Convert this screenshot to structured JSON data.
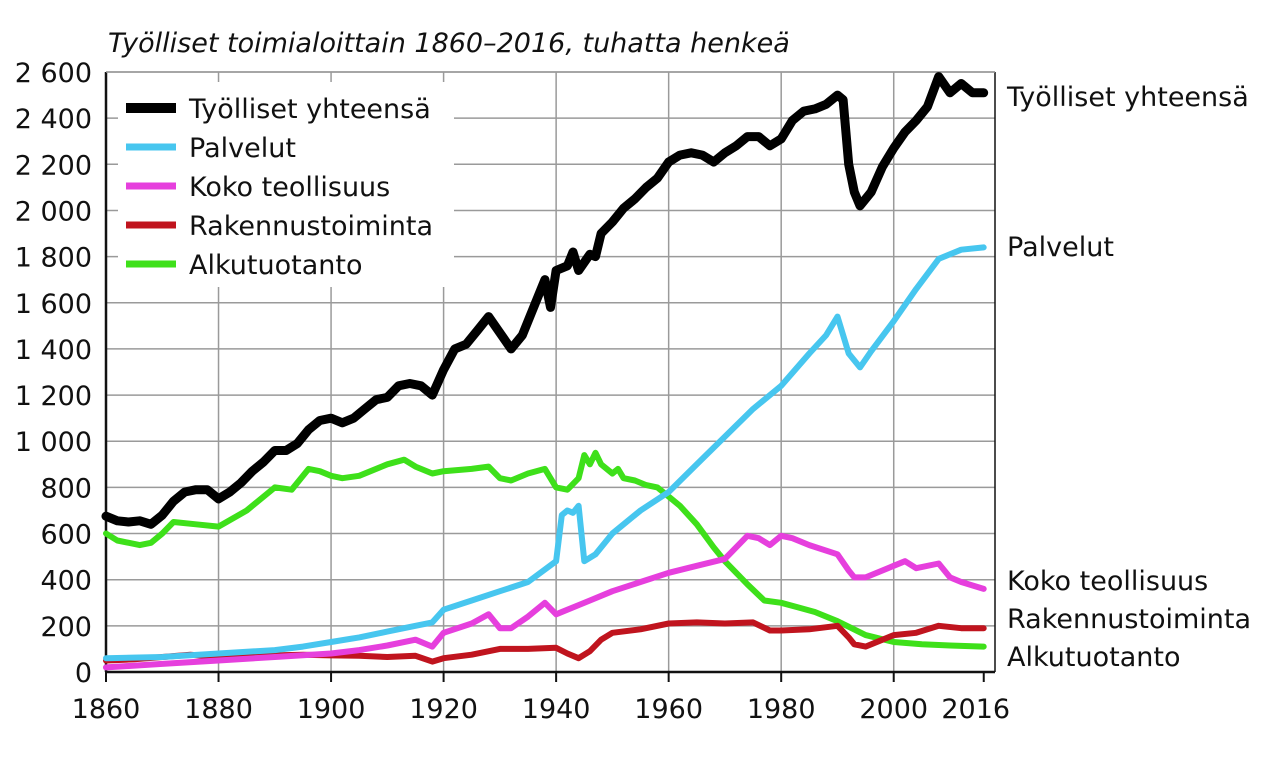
{
  "chart_data": {
    "type": "line",
    "title": "Työlliset toimialoittain 1860–2016, tuhatta henkeä",
    "xlabel": "",
    "ylabel": "",
    "xlim": [
      1860,
      2018
    ],
    "ylim": [
      0,
      2600
    ],
    "x_ticks": [
      1860,
      1880,
      1900,
      1920,
      1940,
      1960,
      1980,
      2000,
      2016
    ],
    "y_ticks": [
      {
        "value": 0,
        "label": "0"
      },
      {
        "value": 200,
        "label": "200"
      },
      {
        "value": 400,
        "label": "400"
      },
      {
        "value": 600,
        "label": "600"
      },
      {
        "value": 800,
        "label": "800"
      },
      {
        "value": 1000,
        "label": "1 000"
      },
      {
        "value": 1200,
        "label": "1 200"
      },
      {
        "value": 1400,
        "label": "1 400"
      },
      {
        "value": 1600,
        "label": "1 600"
      },
      {
        "value": 1800,
        "label": "1 800"
      },
      {
        "value": 2000,
        "label": "2 000"
      },
      {
        "value": 2200,
        "label": "2 200"
      },
      {
        "value": 2400,
        "label": "2 400"
      },
      {
        "value": 2600,
        "label": "2 600"
      }
    ],
    "grid": true,
    "legend_position": "top-left",
    "series": [
      {
        "name": "Työlliset yhteensä",
        "end_label": "Työlliset yhteensä",
        "color": "#000000",
        "width": 9,
        "points": [
          [
            1860,
            675
          ],
          [
            1862,
            655
          ],
          [
            1864,
            650
          ],
          [
            1866,
            655
          ],
          [
            1868,
            640
          ],
          [
            1870,
            680
          ],
          [
            1872,
            740
          ],
          [
            1874,
            780
          ],
          [
            1876,
            790
          ],
          [
            1878,
            790
          ],
          [
            1880,
            750
          ],
          [
            1882,
            780
          ],
          [
            1884,
            820
          ],
          [
            1886,
            870
          ],
          [
            1888,
            910
          ],
          [
            1890,
            960
          ],
          [
            1892,
            960
          ],
          [
            1894,
            990
          ],
          [
            1896,
            1050
          ],
          [
            1898,
            1090
          ],
          [
            1900,
            1100
          ],
          [
            1902,
            1080
          ],
          [
            1904,
            1100
          ],
          [
            1906,
            1140
          ],
          [
            1908,
            1180
          ],
          [
            1910,
            1190
          ],
          [
            1912,
            1240
          ],
          [
            1914,
            1250
          ],
          [
            1916,
            1240
          ],
          [
            1918,
            1200
          ],
          [
            1920,
            1310
          ],
          [
            1922,
            1400
          ],
          [
            1924,
            1420
          ],
          [
            1926,
            1480
          ],
          [
            1928,
            1540
          ],
          [
            1930,
            1470
          ],
          [
            1932,
            1400
          ],
          [
            1934,
            1460
          ],
          [
            1936,
            1580
          ],
          [
            1938,
            1700
          ],
          [
            1939,
            1580
          ],
          [
            1940,
            1740
          ],
          [
            1942,
            1760
          ],
          [
            1943,
            1820
          ],
          [
            1944,
            1740
          ],
          [
            1946,
            1810
          ],
          [
            1947,
            1800
          ],
          [
            1948,
            1900
          ],
          [
            1950,
            1950
          ],
          [
            1952,
            2010
          ],
          [
            1954,
            2050
          ],
          [
            1956,
            2100
          ],
          [
            1958,
            2140
          ],
          [
            1960,
            2210
          ],
          [
            1962,
            2240
          ],
          [
            1964,
            2250
          ],
          [
            1966,
            2240
          ],
          [
            1968,
            2210
          ],
          [
            1970,
            2250
          ],
          [
            1972,
            2280
          ],
          [
            1974,
            2320
          ],
          [
            1976,
            2320
          ],
          [
            1978,
            2280
          ],
          [
            1980,
            2310
          ],
          [
            1982,
            2390
          ],
          [
            1984,
            2430
          ],
          [
            1986,
            2440
          ],
          [
            1988,
            2460
          ],
          [
            1990,
            2500
          ],
          [
            1991,
            2480
          ],
          [
            1992,
            2200
          ],
          [
            1993,
            2080
          ],
          [
            1994,
            2020
          ],
          [
            1996,
            2080
          ],
          [
            1998,
            2190
          ],
          [
            2000,
            2270
          ],
          [
            2002,
            2340
          ],
          [
            2004,
            2390
          ],
          [
            2006,
            2450
          ],
          [
            2008,
            2580
          ],
          [
            2010,
            2510
          ],
          [
            2012,
            2550
          ],
          [
            2014,
            2510
          ],
          [
            2016,
            2510
          ]
        ]
      },
      {
        "name": "Palvelut",
        "end_label": "Palvelut",
        "color": "#47c6ef",
        "width": 6,
        "points": [
          [
            1860,
            60
          ],
          [
            1870,
            65
          ],
          [
            1880,
            80
          ],
          [
            1890,
            95
          ],
          [
            1895,
            110
          ],
          [
            1900,
            130
          ],
          [
            1905,
            150
          ],
          [
            1910,
            175
          ],
          [
            1915,
            200
          ],
          [
            1918,
            215
          ],
          [
            1920,
            270
          ],
          [
            1925,
            310
          ],
          [
            1930,
            350
          ],
          [
            1935,
            390
          ],
          [
            1940,
            480
          ],
          [
            1941,
            680
          ],
          [
            1942,
            700
          ],
          [
            1943,
            690
          ],
          [
            1944,
            720
          ],
          [
            1945,
            480
          ],
          [
            1947,
            510
          ],
          [
            1950,
            600
          ],
          [
            1955,
            700
          ],
          [
            1960,
            780
          ],
          [
            1965,
            900
          ],
          [
            1970,
            1020
          ],
          [
            1975,
            1140
          ],
          [
            1980,
            1240
          ],
          [
            1985,
            1380
          ],
          [
            1988,
            1460
          ],
          [
            1990,
            1540
          ],
          [
            1992,
            1380
          ],
          [
            1994,
            1320
          ],
          [
            1996,
            1390
          ],
          [
            2000,
            1520
          ],
          [
            2004,
            1660
          ],
          [
            2008,
            1790
          ],
          [
            2012,
            1830
          ],
          [
            2016,
            1840
          ]
        ]
      },
      {
        "name": "Koko teollisuus",
        "end_label": "Koko teollisuus",
        "color": "#e63fdd",
        "width": 6,
        "points": [
          [
            1860,
            20
          ],
          [
            1870,
            35
          ],
          [
            1880,
            50
          ],
          [
            1890,
            65
          ],
          [
            1900,
            80
          ],
          [
            1905,
            95
          ],
          [
            1910,
            115
          ],
          [
            1915,
            140
          ],
          [
            1918,
            110
          ],
          [
            1920,
            170
          ],
          [
            1925,
            210
          ],
          [
            1928,
            250
          ],
          [
            1930,
            190
          ],
          [
            1932,
            190
          ],
          [
            1935,
            240
          ],
          [
            1938,
            300
          ],
          [
            1940,
            250
          ],
          [
            1944,
            290
          ],
          [
            1946,
            310
          ],
          [
            1950,
            350
          ],
          [
            1955,
            390
          ],
          [
            1960,
            430
          ],
          [
            1965,
            460
          ],
          [
            1970,
            490
          ],
          [
            1974,
            590
          ],
          [
            1976,
            580
          ],
          [
            1978,
            550
          ],
          [
            1980,
            590
          ],
          [
            1982,
            580
          ],
          [
            1985,
            550
          ],
          [
            1990,
            510
          ],
          [
            1992,
            440
          ],
          [
            1993,
            410
          ],
          [
            1995,
            410
          ],
          [
            2000,
            460
          ],
          [
            2002,
            480
          ],
          [
            2004,
            450
          ],
          [
            2008,
            470
          ],
          [
            2010,
            410
          ],
          [
            2012,
            390
          ],
          [
            2016,
            360
          ]
        ]
      },
      {
        "name": "Rakennustoiminta",
        "end_label": "Rakennustoiminta",
        "color": "#c0141e",
        "width": 6,
        "points": [
          [
            1860,
            50
          ],
          [
            1865,
            55
          ],
          [
            1870,
            65
          ],
          [
            1875,
            75
          ],
          [
            1880,
            65
          ],
          [
            1885,
            70
          ],
          [
            1890,
            72
          ],
          [
            1895,
            75
          ],
          [
            1900,
            72
          ],
          [
            1905,
            70
          ],
          [
            1910,
            65
          ],
          [
            1915,
            70
          ],
          [
            1918,
            45
          ],
          [
            1920,
            60
          ],
          [
            1925,
            75
          ],
          [
            1930,
            100
          ],
          [
            1935,
            100
          ],
          [
            1940,
            105
          ],
          [
            1942,
            80
          ],
          [
            1944,
            60
          ],
          [
            1946,
            90
          ],
          [
            1948,
            140
          ],
          [
            1950,
            170
          ],
          [
            1955,
            185
          ],
          [
            1960,
            210
          ],
          [
            1965,
            215
          ],
          [
            1970,
            210
          ],
          [
            1975,
            215
          ],
          [
            1978,
            180
          ],
          [
            1980,
            180
          ],
          [
            1985,
            185
          ],
          [
            1990,
            200
          ],
          [
            1992,
            150
          ],
          [
            1993,
            120
          ],
          [
            1995,
            110
          ],
          [
            1998,
            140
          ],
          [
            2000,
            160
          ],
          [
            2004,
            170
          ],
          [
            2008,
            200
          ],
          [
            2012,
            190
          ],
          [
            2016,
            190
          ]
        ]
      },
      {
        "name": "Alkutuotanto",
        "end_label": "Alkutuotanto",
        "color": "#3ee01a",
        "width": 6,
        "points": [
          [
            1860,
            600
          ],
          [
            1862,
            570
          ],
          [
            1866,
            550
          ],
          [
            1868,
            560
          ],
          [
            1870,
            600
          ],
          [
            1872,
            650
          ],
          [
            1876,
            640
          ],
          [
            1880,
            630
          ],
          [
            1885,
            700
          ],
          [
            1890,
            800
          ],
          [
            1893,
            790
          ],
          [
            1896,
            880
          ],
          [
            1898,
            870
          ],
          [
            1900,
            850
          ],
          [
            1902,
            840
          ],
          [
            1905,
            850
          ],
          [
            1910,
            900
          ],
          [
            1913,
            920
          ],
          [
            1915,
            890
          ],
          [
            1918,
            860
          ],
          [
            1920,
            870
          ],
          [
            1925,
            880
          ],
          [
            1928,
            890
          ],
          [
            1930,
            840
          ],
          [
            1932,
            830
          ],
          [
            1935,
            860
          ],
          [
            1938,
            880
          ],
          [
            1940,
            800
          ],
          [
            1942,
            790
          ],
          [
            1944,
            840
          ],
          [
            1945,
            940
          ],
          [
            1946,
            900
          ],
          [
            1947,
            950
          ],
          [
            1948,
            900
          ],
          [
            1950,
            860
          ],
          [
            1951,
            880
          ],
          [
            1952,
            840
          ],
          [
            1954,
            830
          ],
          [
            1956,
            810
          ],
          [
            1958,
            800
          ],
          [
            1960,
            760
          ],
          [
            1962,
            720
          ],
          [
            1965,
            640
          ],
          [
            1968,
            540
          ],
          [
            1970,
            480
          ],
          [
            1974,
            380
          ],
          [
            1977,
            310
          ],
          [
            1980,
            300
          ],
          [
            1983,
            280
          ],
          [
            1986,
            260
          ],
          [
            1990,
            220
          ],
          [
            1995,
            160
          ],
          [
            2000,
            130
          ],
          [
            2005,
            120
          ],
          [
            2010,
            115
          ],
          [
            2016,
            110
          ]
        ]
      }
    ]
  }
}
